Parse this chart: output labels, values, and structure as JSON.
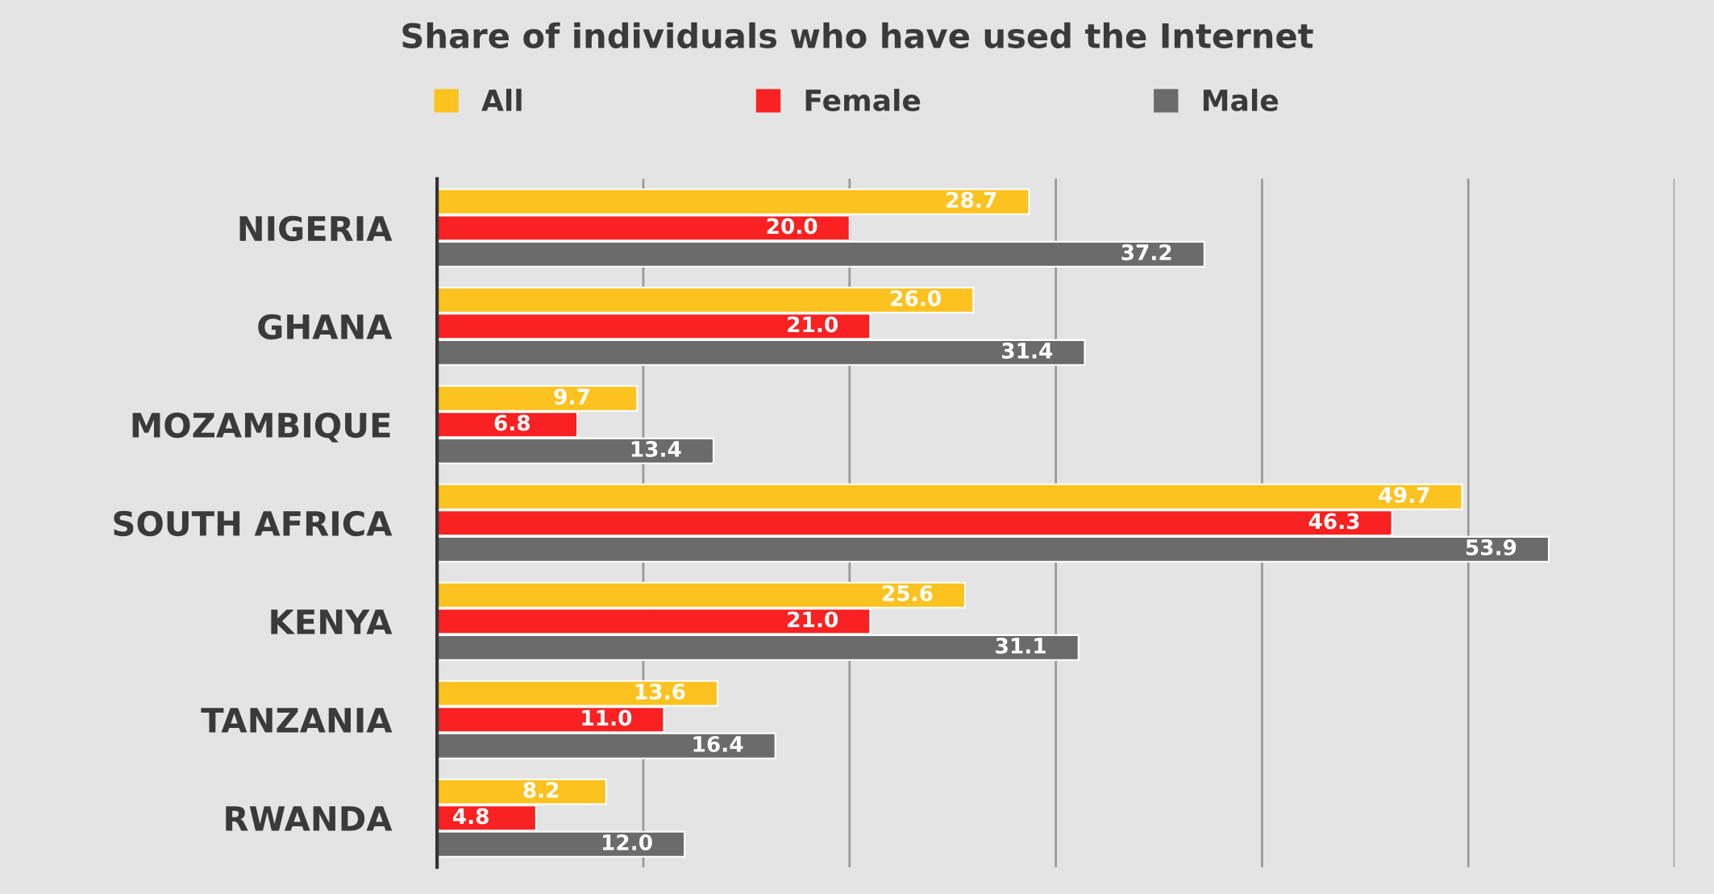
{
  "chart_data": {
    "type": "bar",
    "orientation": "horizontal",
    "title": "Share of individuals who have used the Internet",
    "categories": [
      "NIGERIA",
      "GHANA",
      "MOZAMBIQUE",
      "SOUTH AFRICA",
      "KENYA",
      "TANZANIA",
      "RWANDA"
    ],
    "series": [
      {
        "name": "All",
        "color": "#fcc21f",
        "values": [
          28.7,
          26.0,
          9.7,
          49.7,
          25.6,
          13.6,
          8.2
        ],
        "value_labels": [
          "28.7",
          "26.0",
          "9.7",
          "49.7",
          "25.6",
          "13.6",
          "8.2"
        ]
      },
      {
        "name": "Female",
        "color": "#f92121",
        "values": [
          20.0,
          21.0,
          6.8,
          46.3,
          21.0,
          11.0,
          4.8
        ],
        "value_labels": [
          "20.0",
          "21.0",
          "6.8",
          "46.3",
          "21.0",
          "11.0",
          "4.8"
        ]
      },
      {
        "name": "Male",
        "color": "#6b6b6b",
        "values": [
          37.2,
          31.4,
          13.4,
          53.9,
          31.1,
          16.4,
          12.0
        ],
        "value_labels": [
          "37.2",
          "31.4",
          "13.4",
          "53.9",
          "31.1",
          "16.4",
          "12.0"
        ]
      }
    ],
    "xlim": [
      0,
      60
    ],
    "xticks": [
      {
        "value": 0,
        "label": null
      },
      {
        "value": 10,
        "label": null
      },
      {
        "value": 20,
        "label": null
      },
      {
        "value": 30,
        "label": null
      },
      {
        "value": 40,
        "label": null
      },
      {
        "value": 50,
        "label": null
      },
      {
        "value": 60,
        "label": null
      }
    ],
    "tick_labels": "y",
    "grid": "x",
    "legend": "top"
  }
}
